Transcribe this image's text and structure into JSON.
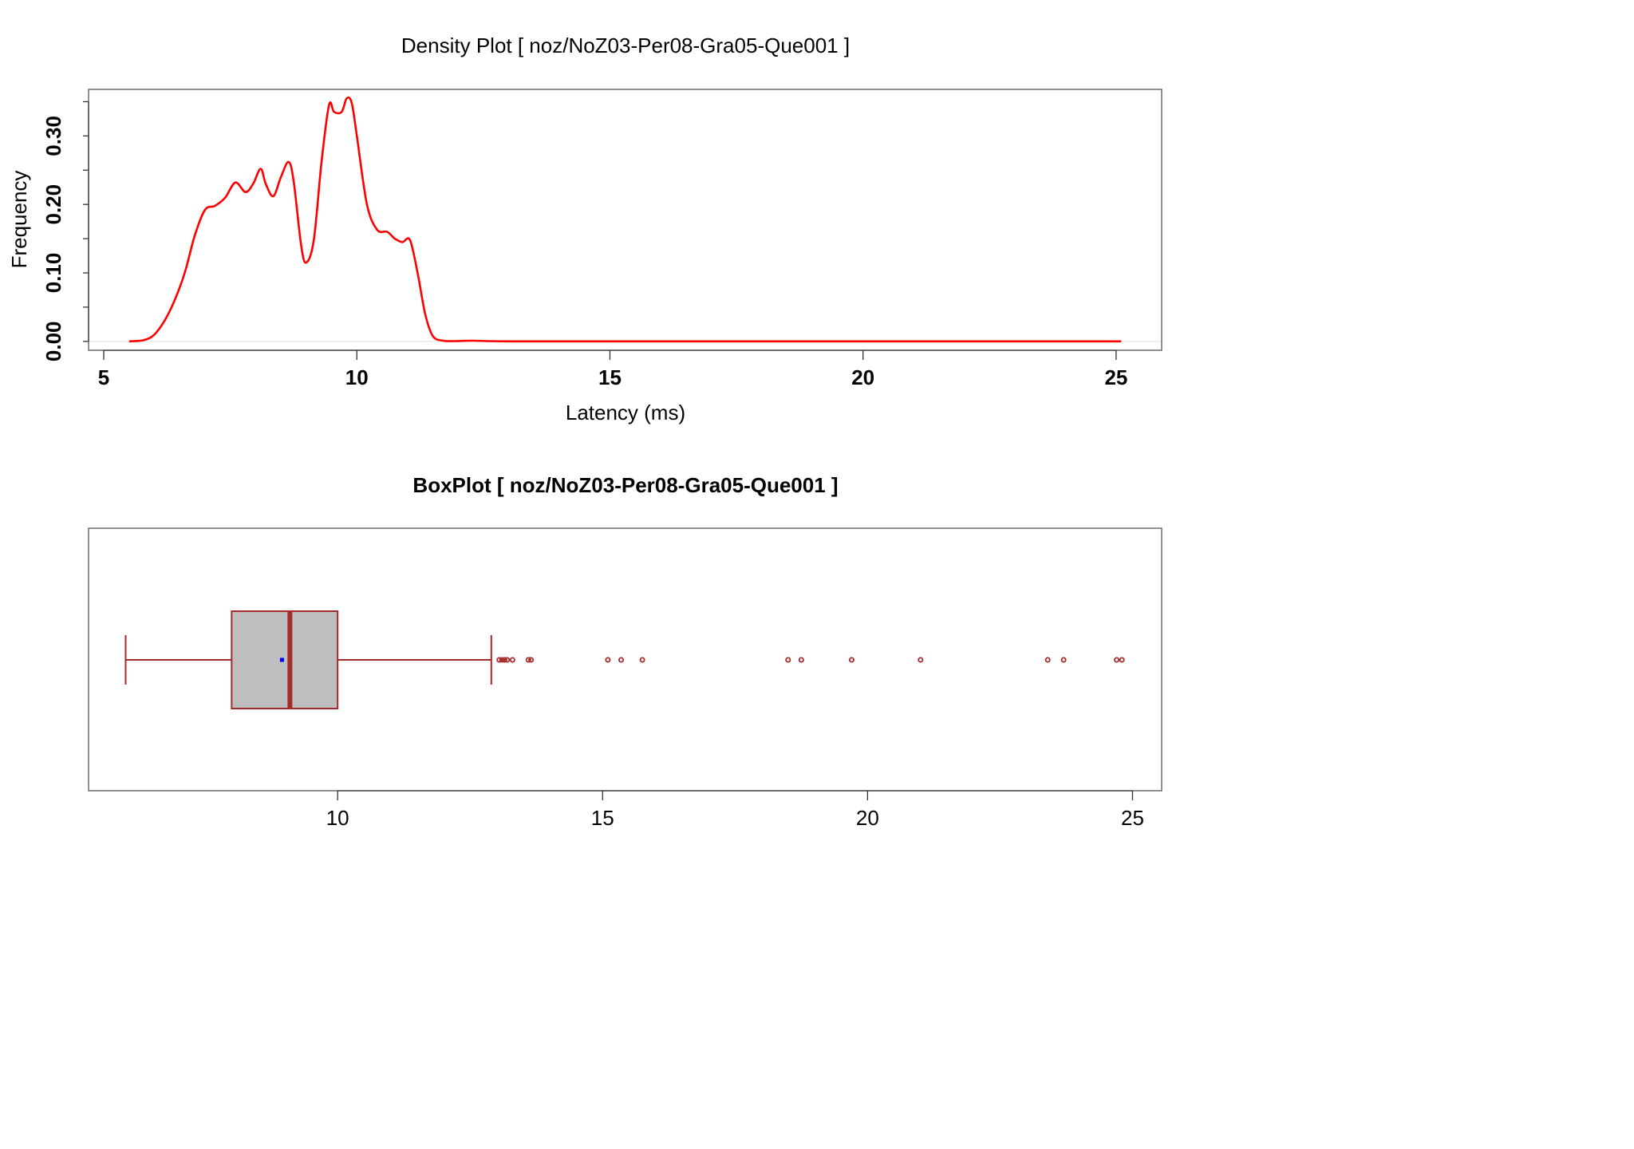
{
  "colors": {
    "density_line": "#ff0000",
    "box_border": "#a52a2a",
    "box_fill": "#bebebe",
    "mean_marker": "#0000ff",
    "outlier": "#a52a2a",
    "frame": "#555555",
    "zero_line": "#e6e6e6"
  },
  "chart_data": [
    {
      "type": "line",
      "title": "Density Plot [ noz/NoZ03-Per08-Gra05-Que001 ]",
      "xlabel": "Latency (ms)",
      "ylabel": "Frequency",
      "xlim": [
        4.7,
        25.9
      ],
      "ylim": [
        -0.013,
        0.368
      ],
      "x_ticks": [
        5,
        10,
        15,
        20,
        25
      ],
      "x_tick_labels": [
        "5",
        "10",
        "15",
        "20",
        "25"
      ],
      "y_ticks": [
        0,
        0.05,
        0.1,
        0.15,
        0.2,
        0.25,
        0.3,
        0.35
      ],
      "y_tick_labels": [
        "0.00",
        "",
        "0.10",
        "",
        "0.20",
        "",
        "0.30",
        ""
      ],
      "grid": false,
      "series": [
        {
          "x": [
            5.5,
            5.8,
            6.0,
            6.2,
            6.4,
            6.6,
            6.8,
            7.0,
            7.2,
            7.4,
            7.6,
            7.8,
            7.95,
            8.1,
            8.2,
            8.35,
            8.5,
            8.65,
            8.75,
            8.9,
            9.0,
            9.15,
            9.3,
            9.45,
            9.55,
            9.7,
            9.8,
            9.9,
            10.0,
            10.2,
            10.4,
            10.6,
            10.75,
            10.9,
            11.05,
            11.2,
            11.35,
            11.5,
            11.7,
            12.0,
            12.3,
            13.0,
            15.0,
            20.0,
            25.1
          ],
          "y": [
            0.0,
            0.002,
            0.01,
            0.03,
            0.06,
            0.1,
            0.155,
            0.192,
            0.198,
            0.21,
            0.232,
            0.218,
            0.23,
            0.252,
            0.23,
            0.212,
            0.24,
            0.262,
            0.235,
            0.14,
            0.115,
            0.148,
            0.26,
            0.345,
            0.335,
            0.335,
            0.355,
            0.348,
            0.3,
            0.2,
            0.163,
            0.16,
            0.15,
            0.145,
            0.148,
            0.1,
            0.04,
            0.008,
            0.001,
            0.0005,
            0.001,
            0.0,
            0.0,
            0.0,
            0.0
          ]
        }
      ]
    },
    {
      "type": "box",
      "title": "BoxPlot [ noz/NoZ03-Per08-Gra05-Que001 ]",
      "xlim": [
        5.3,
        25.55
      ],
      "x_ticks": [
        10,
        15,
        20,
        25
      ],
      "x_tick_labels": [
        "10",
        "15",
        "20",
        "25"
      ],
      "horizontal": true,
      "min_whisker": 6.0,
      "q1": 8.0,
      "median": 9.1,
      "q3": 10.0,
      "max_whisker": 12.9,
      "mean": 8.95,
      "outliers": [
        13.05,
        13.1,
        13.15,
        13.2,
        13.3,
        13.6,
        13.65,
        15.1,
        15.35,
        15.75,
        18.5,
        18.75,
        19.7,
        21.0,
        23.4,
        23.7,
        24.7,
        24.8
      ]
    }
  ]
}
